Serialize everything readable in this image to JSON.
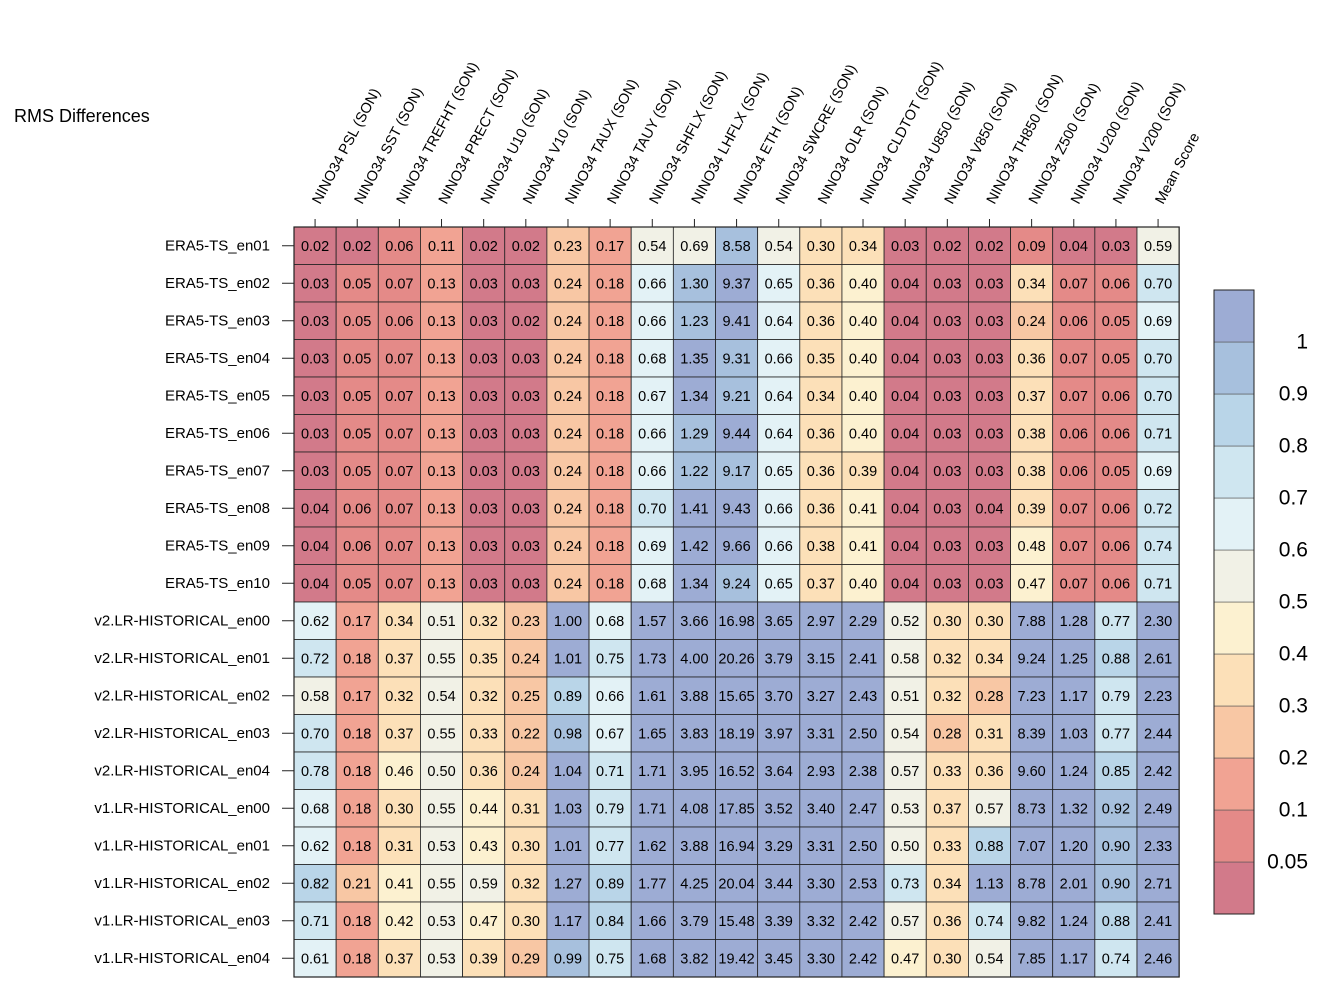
{
  "chart_data": {
    "type": "heatmap",
    "title": "RMS Differences",
    "columns": [
      "NINO34 PSL (SON)",
      "NINO34 SST (SON)",
      "NINO34 TREFHT (SON)",
      "NINO34 PRECT (SON)",
      "NINO34 U10 (SON)",
      "NINO34 V10 (SON)",
      "NINO34 TAUX (SON)",
      "NINO34 TAUY (SON)",
      "NINO34 SHFLX (SON)",
      "NINO34 LHFLX (SON)",
      "NINO34 ETH (SON)",
      "NINO34 SWCRE (SON)",
      "NINO34 OLR (SON)",
      "NINO34 CLDTOT (SON)",
      "NINO34 U850 (SON)",
      "NINO34 V850 (SON)",
      "NINO34 TH850 (SON)",
      "NINO34 Z500 (SON)",
      "NINO34 U200 (SON)",
      "NINO34 V200 (SON)",
      "Mean Score"
    ],
    "rows": [
      "ERA5-TS_en01",
      "ERA5-TS_en02",
      "ERA5-TS_en03",
      "ERA5-TS_en04",
      "ERA5-TS_en05",
      "ERA5-TS_en06",
      "ERA5-TS_en07",
      "ERA5-TS_en08",
      "ERA5-TS_en09",
      "ERA5-TS_en10",
      "v2.LR-HISTORICAL_en00",
      "v2.LR-HISTORICAL_en01",
      "v2.LR-HISTORICAL_en02",
      "v2.LR-HISTORICAL_en03",
      "v2.LR-HISTORICAL_en04",
      "v1.LR-HISTORICAL_en00",
      "v1.LR-HISTORICAL_en01",
      "v1.LR-HISTORICAL_en02",
      "v1.LR-HISTORICAL_en03",
      "v1.LR-HISTORICAL_en04"
    ],
    "values": [
      [
        "0.02",
        "0.02",
        "0.06",
        "0.11",
        "0.02",
        "0.02",
        "0.23",
        "0.17",
        "0.54",
        "0.69",
        "8.58",
        "0.54",
        "0.30",
        "0.34",
        "0.03",
        "0.02",
        "0.02",
        "0.09",
        "0.04",
        "0.03",
        "0.59"
      ],
      [
        "0.03",
        "0.05",
        "0.07",
        "0.13",
        "0.03",
        "0.03",
        "0.24",
        "0.18",
        "0.66",
        "1.30",
        "9.37",
        "0.65",
        "0.36",
        "0.40",
        "0.04",
        "0.03",
        "0.03",
        "0.34",
        "0.07",
        "0.06",
        "0.70"
      ],
      [
        "0.03",
        "0.05",
        "0.06",
        "0.13",
        "0.03",
        "0.02",
        "0.24",
        "0.18",
        "0.66",
        "1.23",
        "9.41",
        "0.64",
        "0.36",
        "0.40",
        "0.04",
        "0.03",
        "0.03",
        "0.24",
        "0.06",
        "0.05",
        "0.69"
      ],
      [
        "0.03",
        "0.05",
        "0.07",
        "0.13",
        "0.03",
        "0.03",
        "0.24",
        "0.18",
        "0.68",
        "1.35",
        "9.31",
        "0.66",
        "0.35",
        "0.40",
        "0.04",
        "0.03",
        "0.03",
        "0.36",
        "0.07",
        "0.05",
        "0.70"
      ],
      [
        "0.03",
        "0.05",
        "0.07",
        "0.13",
        "0.03",
        "0.03",
        "0.24",
        "0.18",
        "0.67",
        "1.34",
        "9.21",
        "0.64",
        "0.34",
        "0.40",
        "0.04",
        "0.03",
        "0.03",
        "0.37",
        "0.07",
        "0.06",
        "0.70"
      ],
      [
        "0.03",
        "0.05",
        "0.07",
        "0.13",
        "0.03",
        "0.03",
        "0.24",
        "0.18",
        "0.66",
        "1.29",
        "9.44",
        "0.64",
        "0.36",
        "0.40",
        "0.04",
        "0.03",
        "0.03",
        "0.38",
        "0.06",
        "0.06",
        "0.71"
      ],
      [
        "0.03",
        "0.05",
        "0.07",
        "0.13",
        "0.03",
        "0.03",
        "0.24",
        "0.18",
        "0.66",
        "1.22",
        "9.17",
        "0.65",
        "0.36",
        "0.39",
        "0.04",
        "0.03",
        "0.03",
        "0.38",
        "0.06",
        "0.05",
        "0.69"
      ],
      [
        "0.04",
        "0.06",
        "0.07",
        "0.13",
        "0.03",
        "0.03",
        "0.24",
        "0.18",
        "0.70",
        "1.41",
        "9.43",
        "0.66",
        "0.36",
        "0.41",
        "0.04",
        "0.03",
        "0.04",
        "0.39",
        "0.07",
        "0.06",
        "0.72"
      ],
      [
        "0.04",
        "0.06",
        "0.07",
        "0.13",
        "0.03",
        "0.03",
        "0.24",
        "0.18",
        "0.69",
        "1.42",
        "9.66",
        "0.66",
        "0.38",
        "0.41",
        "0.04",
        "0.03",
        "0.03",
        "0.48",
        "0.07",
        "0.06",
        "0.74"
      ],
      [
        "0.04",
        "0.05",
        "0.07",
        "0.13",
        "0.03",
        "0.03",
        "0.24",
        "0.18",
        "0.68",
        "1.34",
        "9.24",
        "0.65",
        "0.37",
        "0.40",
        "0.04",
        "0.03",
        "0.03",
        "0.47",
        "0.07",
        "0.06",
        "0.71"
      ],
      [
        "0.62",
        "0.17",
        "0.34",
        "0.51",
        "0.32",
        "0.23",
        "1.00",
        "0.68",
        "1.57",
        "3.66",
        "16.98",
        "3.65",
        "2.97",
        "2.29",
        "0.52",
        "0.30",
        "0.30",
        "7.88",
        "1.28",
        "0.77",
        "2.30"
      ],
      [
        "0.72",
        "0.18",
        "0.37",
        "0.55",
        "0.35",
        "0.24",
        "1.01",
        "0.75",
        "1.73",
        "4.00",
        "20.26",
        "3.79",
        "3.15",
        "2.41",
        "0.58",
        "0.32",
        "0.34",
        "9.24",
        "1.25",
        "0.88",
        "2.61"
      ],
      [
        "0.58",
        "0.17",
        "0.32",
        "0.54",
        "0.32",
        "0.25",
        "0.89",
        "0.66",
        "1.61",
        "3.88",
        "15.65",
        "3.70",
        "3.27",
        "2.43",
        "0.51",
        "0.32",
        "0.28",
        "7.23",
        "1.17",
        "0.79",
        "2.23"
      ],
      [
        "0.70",
        "0.18",
        "0.37",
        "0.55",
        "0.33",
        "0.22",
        "0.98",
        "0.67",
        "1.65",
        "3.83",
        "18.19",
        "3.97",
        "3.31",
        "2.50",
        "0.54",
        "0.28",
        "0.31",
        "8.39",
        "1.03",
        "0.77",
        "2.44"
      ],
      [
        "0.78",
        "0.18",
        "0.46",
        "0.50",
        "0.36",
        "0.24",
        "1.04",
        "0.71",
        "1.71",
        "3.95",
        "16.52",
        "3.64",
        "2.93",
        "2.38",
        "0.57",
        "0.33",
        "0.36",
        "9.60",
        "1.24",
        "0.85",
        "2.42"
      ],
      [
        "0.68",
        "0.18",
        "0.30",
        "0.55",
        "0.44",
        "0.31",
        "1.03",
        "0.79",
        "1.71",
        "4.08",
        "17.85",
        "3.52",
        "3.40",
        "2.47",
        "0.53",
        "0.37",
        "0.57",
        "8.73",
        "1.32",
        "0.92",
        "2.49"
      ],
      [
        "0.62",
        "0.18",
        "0.31",
        "0.53",
        "0.43",
        "0.30",
        "1.01",
        "0.77",
        "1.62",
        "3.88",
        "16.94",
        "3.29",
        "3.31",
        "2.50",
        "0.50",
        "0.33",
        "0.88",
        "7.07",
        "1.20",
        "0.90",
        "2.33"
      ],
      [
        "0.82",
        "0.21",
        "0.41",
        "0.55",
        "0.59",
        "0.32",
        "1.27",
        "0.89",
        "1.77",
        "4.25",
        "20.04",
        "3.44",
        "3.30",
        "2.53",
        "0.73",
        "0.34",
        "1.13",
        "8.78",
        "2.01",
        "0.90",
        "2.71"
      ],
      [
        "0.71",
        "0.18",
        "0.42",
        "0.53",
        "0.47",
        "0.30",
        "1.17",
        "0.84",
        "1.66",
        "3.79",
        "15.48",
        "3.39",
        "3.32",
        "2.42",
        "0.57",
        "0.36",
        "0.74",
        "9.82",
        "1.24",
        "0.88",
        "2.41"
      ],
      [
        "0.61",
        "0.18",
        "0.37",
        "0.53",
        "0.39",
        "0.29",
        "0.99",
        "0.75",
        "1.68",
        "3.82",
        "19.42",
        "3.45",
        "3.30",
        "2.42",
        "0.47",
        "0.30",
        "0.54",
        "7.85",
        "1.17",
        "0.74",
        "2.46"
      ]
    ],
    "colorbar": {
      "levels": [
        0.05,
        0.1,
        0.2,
        0.3,
        0.4,
        0.5,
        0.6,
        0.7,
        0.8,
        0.9,
        1
      ],
      "tick_labels": [
        "0.05",
        "0.1",
        "0.2",
        "0.3",
        "0.4",
        "0.5",
        "0.6",
        "0.7",
        "0.8",
        "0.9",
        "1"
      ],
      "colors": [
        "#d27a8a",
        "#e48a88",
        "#f1a393",
        "#f8c7a4",
        "#fce0b8",
        "#fcf1d0",
        "#f1f1e6",
        "#e3f2f6",
        "#cfe6f0",
        "#b9d5e8",
        "#a7c0dd",
        "#9dacd4"
      ]
    },
    "legend_position": "right"
  }
}
